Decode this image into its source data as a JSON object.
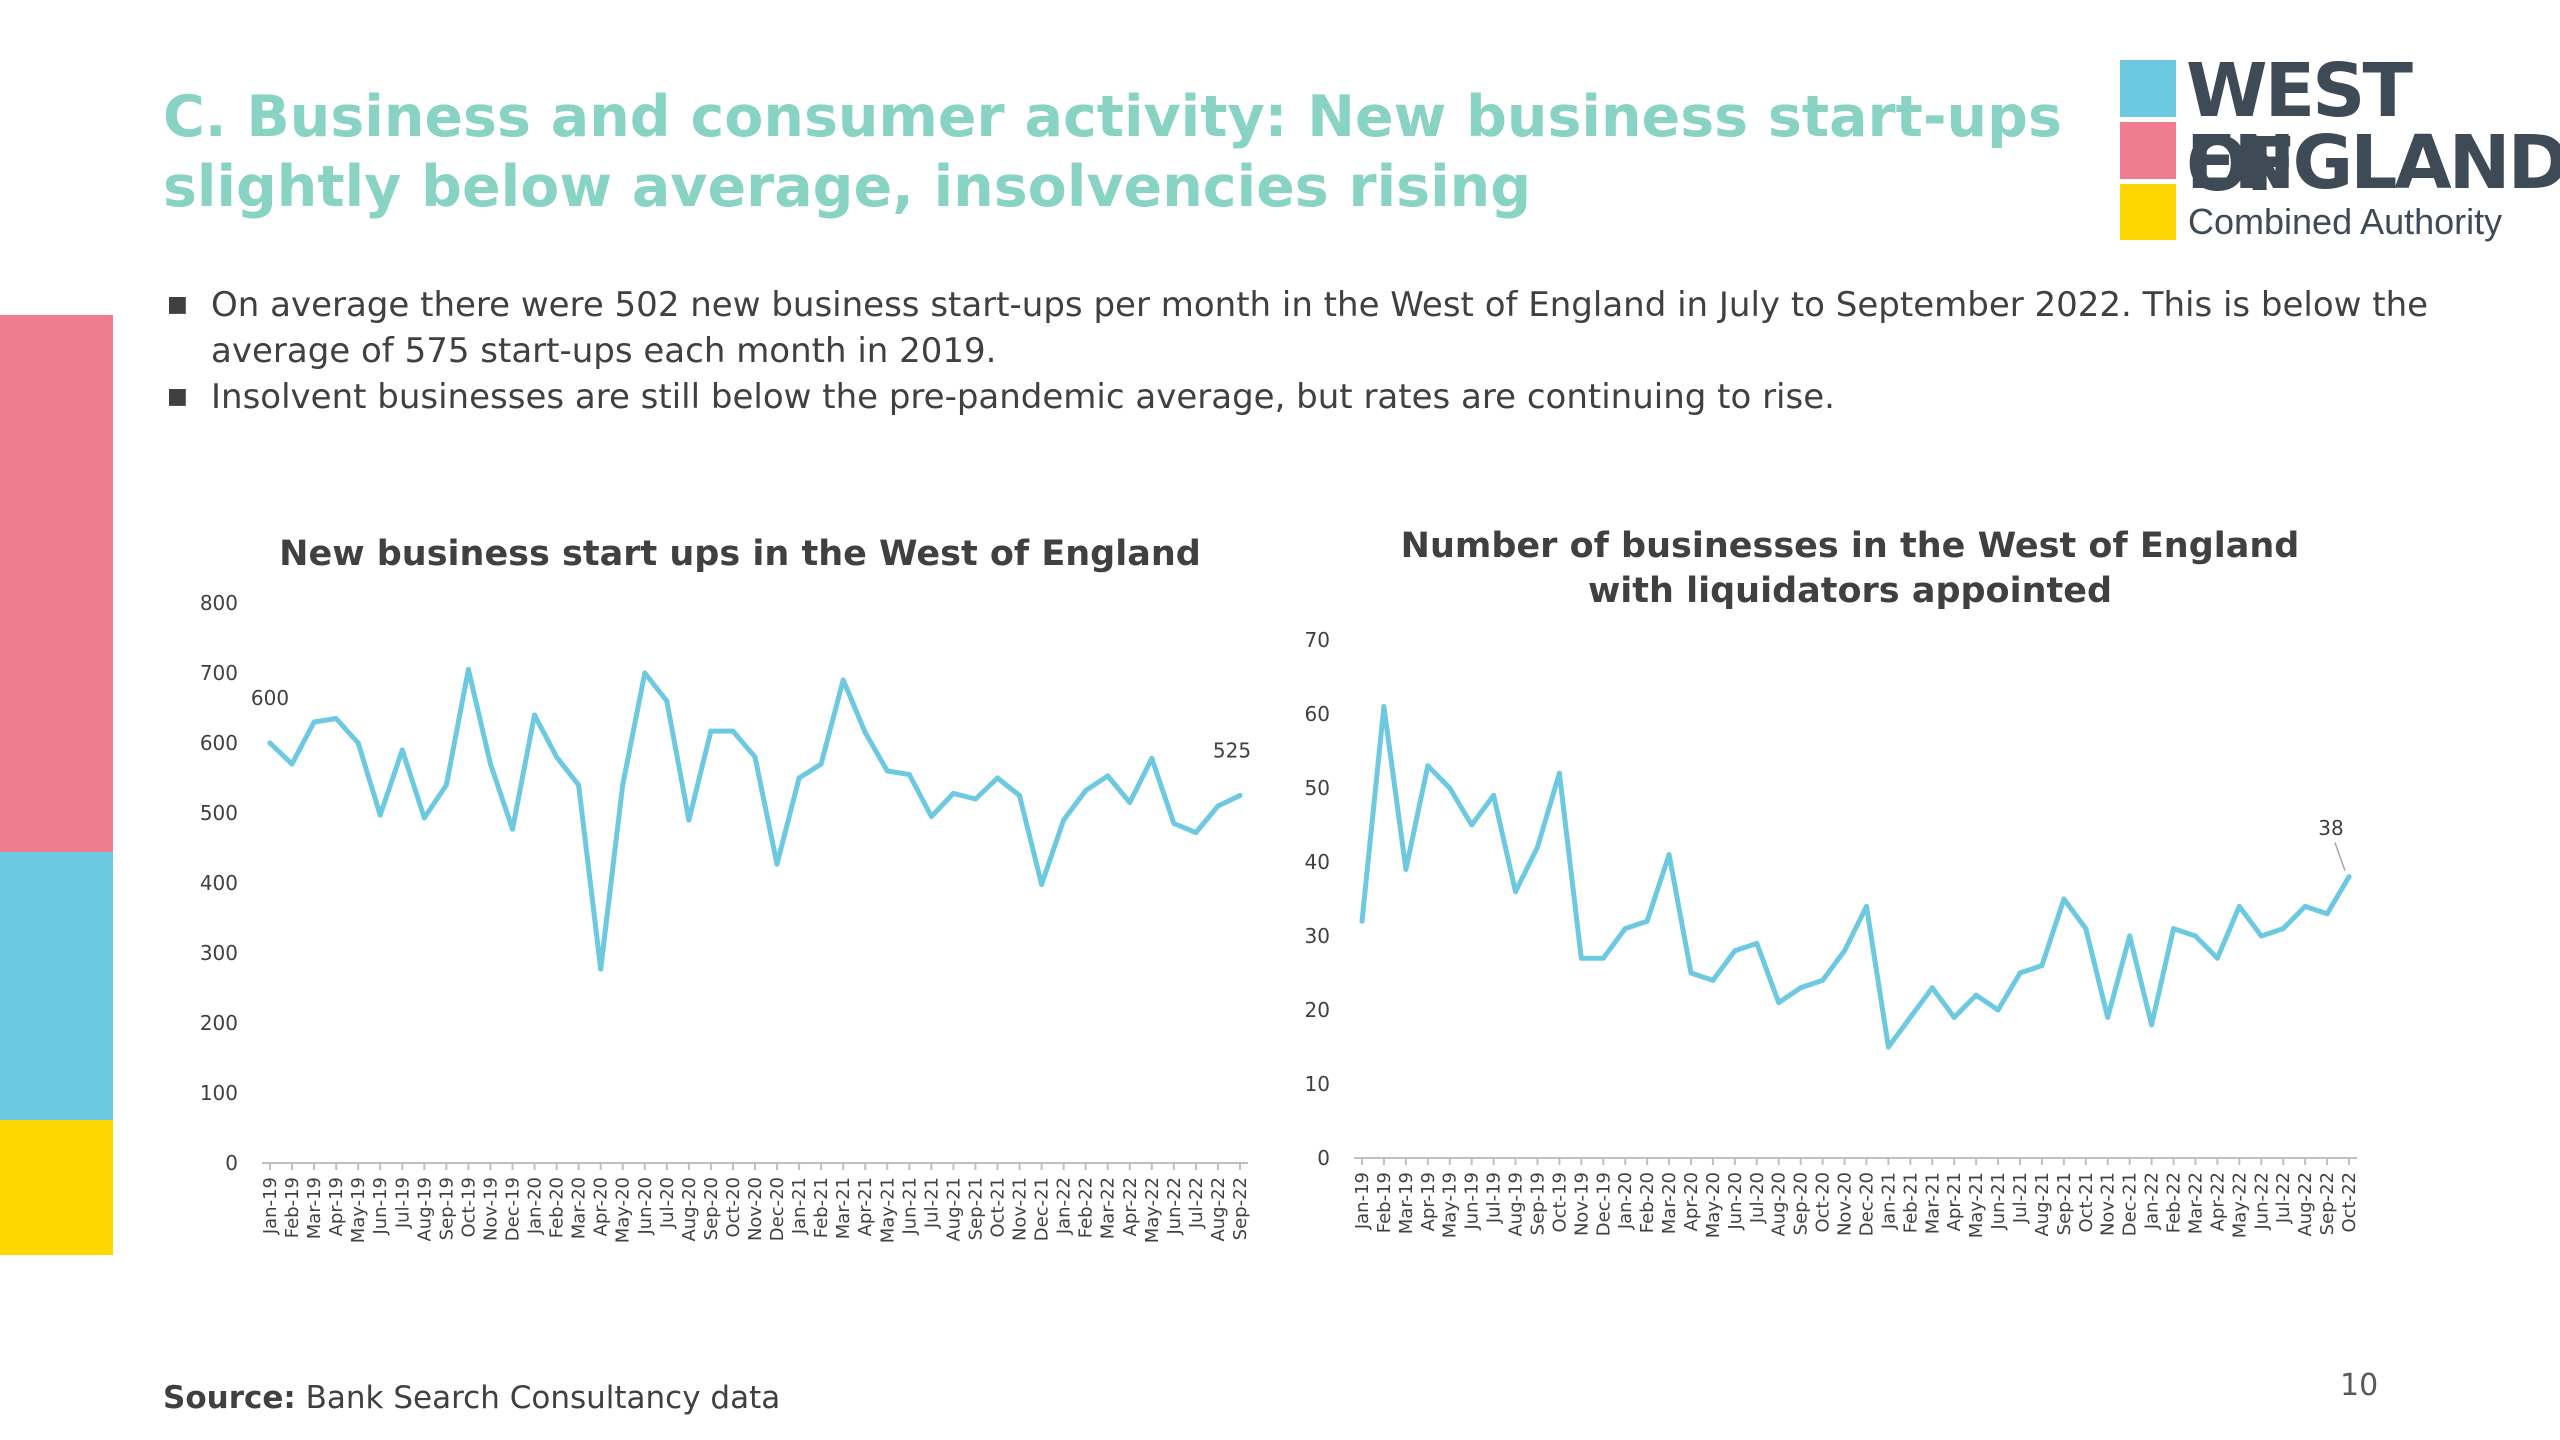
{
  "slide": {
    "title_line1": "C. Business and consumer activity: New business start-ups",
    "title_line2": "slightly below average, insolvencies rising",
    "bullets": [
      "On average there were 502 new business start-ups per month in the West of England in July to September 2022. This is below the",
      "average of 575 start-ups each month in 2019.",
      "Insolvent businesses are still below the pre-pandemic average, but rates are continuing to rise."
    ],
    "source_label": "Source:",
    "source_text": "Bank Search Consultancy data",
    "page_number": "10"
  },
  "logo": {
    "line1": "WEST OF",
    "line2": "ENGLAND",
    "line3": "Combined Authority"
  },
  "colors": {
    "title": "#88d3c4",
    "series": "#6cc9e0",
    "pink": "#ef7d8f",
    "blue": "#6cc9e0",
    "yellow": "#ffd700",
    "text": "#404040",
    "axis": "#bfbfbf"
  },
  "chart_data": [
    {
      "type": "line",
      "title": "New business start ups in the West of England",
      "xlabel": "",
      "ylabel": "",
      "ylim": [
        0,
        800
      ],
      "yticks": [
        "0",
        "100",
        "200",
        "300",
        "400",
        "500",
        "600",
        "700",
        "800"
      ],
      "grid": false,
      "x": [
        "Jan-19",
        "Feb-19",
        "Mar-19",
        "Apr-19",
        "May-19",
        "Jun-19",
        "Jul-19",
        "Aug-19",
        "Sep-19",
        "Oct-19",
        "Nov-19",
        "Dec-19",
        "Jan-20",
        "Feb-20",
        "Mar-20",
        "Apr-20",
        "May-20",
        "Jun-20",
        "Jul-20",
        "Aug-20",
        "Sep-20",
        "Oct-20",
        "Nov-20",
        "Dec-20",
        "Jan-21",
        "Feb-21",
        "Mar-21",
        "Apr-21",
        "May-21",
        "Jun-21",
        "Jul-21",
        "Aug-21",
        "Sep-21",
        "Oct-21",
        "Nov-21",
        "Dec-21",
        "Jan-22",
        "Feb-22",
        "Mar-22",
        "Apr-22",
        "May-22",
        "Jun-22",
        "Jul-22",
        "Aug-22",
        "Sep-22"
      ],
      "series": [
        {
          "values": [
            600,
            570,
            630,
            635,
            600,
            497,
            590,
            493,
            540,
            705,
            570,
            477,
            640,
            580,
            540,
            277,
            540,
            700,
            660,
            490,
            617,
            617,
            580,
            427,
            550,
            570,
            690,
            615,
            560,
            555,
            495,
            528,
            520,
            550,
            525,
            398,
            490,
            532,
            553,
            515,
            578,
            485,
            472,
            510,
            525
          ]
        }
      ],
      "data_labels": [
        {
          "index": 0,
          "text": "600"
        },
        {
          "index": 44,
          "text": "525"
        }
      ]
    },
    {
      "type": "line",
      "title": "Number of businesses in the West of England with liquidators appointed",
      "title_lines": [
        "Number of businesses in the West of England",
        "with liquidators appointed"
      ],
      "xlabel": "",
      "ylabel": "",
      "ylim": [
        0,
        70
      ],
      "yticks": [
        "0",
        "10",
        "20",
        "30",
        "40",
        "50",
        "60",
        "70"
      ],
      "grid": false,
      "x": [
        "Jan-19",
        "Feb-19",
        "Mar-19",
        "Apr-19",
        "May-19",
        "Jun-19",
        "Jul-19",
        "Aug-19",
        "Sep-19",
        "Oct-19",
        "Nov-19",
        "Dec-19",
        "Jan-20",
        "Feb-20",
        "Mar-20",
        "Apr-20",
        "May-20",
        "Jun-20",
        "Jul-20",
        "Aug-20",
        "Sep-20",
        "Oct-20",
        "Nov-20",
        "Dec-20",
        "Jan-21",
        "Feb-21",
        "Mar-21",
        "Apr-21",
        "May-21",
        "Jun-21",
        "Jul-21",
        "Aug-21",
        "Sep-21",
        "Oct-21",
        "Nov-21",
        "Dec-21",
        "Jan-22",
        "Feb-22",
        "Mar-22",
        "Apr-22",
        "May-22",
        "Jun-22",
        "Jul-22",
        "Aug-22",
        "Sep-22",
        "Oct-22"
      ],
      "series": [
        {
          "values": [
            32,
            61,
            39,
            53,
            50,
            45,
            49,
            36,
            42,
            52,
            27,
            27,
            31,
            32,
            41,
            25,
            24,
            28,
            29,
            21,
            23,
            24,
            28,
            34,
            15,
            19,
            23,
            19,
            22,
            20,
            25,
            26,
            35,
            31,
            19,
            30,
            18,
            31,
            30,
            27,
            34,
            30,
            31,
            34,
            33,
            38
          ]
        }
      ],
      "data_labels": [
        {
          "index": 45,
          "text": "38"
        }
      ]
    }
  ]
}
